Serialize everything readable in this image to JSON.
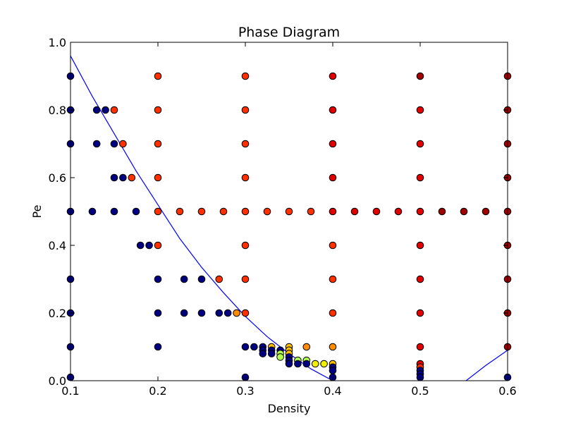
{
  "chart_data": {
    "type": "scatter",
    "title": "Phase Diagram",
    "xlabel": "Density",
    "ylabel": "Pe",
    "xlim": [
      0.1,
      0.6
    ],
    "ylim": [
      0.0,
      1.0
    ],
    "xticks": [
      "0.1",
      "0.2",
      "0.3",
      "0.4",
      "0.5",
      "0.6"
    ],
    "yticks": [
      "0.0",
      "0.2",
      "0.4",
      "0.6",
      "0.8",
      "1.0"
    ],
    "grid": false,
    "colors": {
      "navy": "#000080",
      "orange_red": "#ff3000",
      "red": "#e00000",
      "dark_red": "#a00000",
      "orange": "#ff8c00",
      "amber": "#ffc000",
      "yellow": "#f0f000",
      "light_green": "#b0ff50",
      "curve": "#0000ff"
    },
    "points": [
      {
        "x": 0.1,
        "y": 0.9,
        "c": "navy"
      },
      {
        "x": 0.1,
        "y": 0.8,
        "c": "navy"
      },
      {
        "x": 0.1,
        "y": 0.7,
        "c": "navy"
      },
      {
        "x": 0.1,
        "y": 0.5,
        "c": "navy"
      },
      {
        "x": 0.1,
        "y": 0.3,
        "c": "navy"
      },
      {
        "x": 0.1,
        "y": 0.2,
        "c": "navy"
      },
      {
        "x": 0.1,
        "y": 0.1,
        "c": "navy"
      },
      {
        "x": 0.1,
        "y": 0.01,
        "c": "navy"
      },
      {
        "x": 0.13,
        "y": 0.8,
        "c": "navy"
      },
      {
        "x": 0.14,
        "y": 0.8,
        "c": "navy"
      },
      {
        "x": 0.15,
        "y": 0.8,
        "c": "orange_red"
      },
      {
        "x": 0.13,
        "y": 0.7,
        "c": "navy"
      },
      {
        "x": 0.15,
        "y": 0.7,
        "c": "navy"
      },
      {
        "x": 0.16,
        "y": 0.7,
        "c": "orange_red"
      },
      {
        "x": 0.15,
        "y": 0.6,
        "c": "navy"
      },
      {
        "x": 0.16,
        "y": 0.6,
        "c": "navy"
      },
      {
        "x": 0.17,
        "y": 0.6,
        "c": "orange_red"
      },
      {
        "x": 0.125,
        "y": 0.5,
        "c": "navy"
      },
      {
        "x": 0.15,
        "y": 0.5,
        "c": "navy"
      },
      {
        "x": 0.175,
        "y": 0.5,
        "c": "navy"
      },
      {
        "x": 0.18,
        "y": 0.4,
        "c": "navy"
      },
      {
        "x": 0.19,
        "y": 0.4,
        "c": "navy"
      },
      {
        "x": 0.2,
        "y": 0.9,
        "c": "orange_red"
      },
      {
        "x": 0.2,
        "y": 0.8,
        "c": "orange_red"
      },
      {
        "x": 0.2,
        "y": 0.7,
        "c": "orange_red"
      },
      {
        "x": 0.2,
        "y": 0.6,
        "c": "orange_red"
      },
      {
        "x": 0.2,
        "y": 0.5,
        "c": "orange_red"
      },
      {
        "x": 0.2,
        "y": 0.4,
        "c": "orange_red"
      },
      {
        "x": 0.2,
        "y": 0.3,
        "c": "navy"
      },
      {
        "x": 0.2,
        "y": 0.2,
        "c": "navy"
      },
      {
        "x": 0.2,
        "y": 0.1,
        "c": "navy"
      },
      {
        "x": 0.225,
        "y": 0.5,
        "c": "orange_red"
      },
      {
        "x": 0.25,
        "y": 0.5,
        "c": "orange_red"
      },
      {
        "x": 0.275,
        "y": 0.5,
        "c": "orange_red"
      },
      {
        "x": 0.23,
        "y": 0.3,
        "c": "navy"
      },
      {
        "x": 0.25,
        "y": 0.3,
        "c": "navy"
      },
      {
        "x": 0.27,
        "y": 0.3,
        "c": "orange_red"
      },
      {
        "x": 0.23,
        "y": 0.2,
        "c": "navy"
      },
      {
        "x": 0.25,
        "y": 0.2,
        "c": "navy"
      },
      {
        "x": 0.27,
        "y": 0.2,
        "c": "navy"
      },
      {
        "x": 0.28,
        "y": 0.2,
        "c": "navy"
      },
      {
        "x": 0.29,
        "y": 0.2,
        "c": "orange"
      },
      {
        "x": 0.3,
        "y": 0.9,
        "c": "orange_red"
      },
      {
        "x": 0.3,
        "y": 0.8,
        "c": "orange_red"
      },
      {
        "x": 0.3,
        "y": 0.7,
        "c": "orange_red"
      },
      {
        "x": 0.3,
        "y": 0.6,
        "c": "orange_red"
      },
      {
        "x": 0.3,
        "y": 0.5,
        "c": "orange_red"
      },
      {
        "x": 0.3,
        "y": 0.4,
        "c": "orange_red"
      },
      {
        "x": 0.3,
        "y": 0.3,
        "c": "orange_red"
      },
      {
        "x": 0.3,
        "y": 0.2,
        "c": "orange_red"
      },
      {
        "x": 0.3,
        "y": 0.1,
        "c": "navy"
      },
      {
        "x": 0.3,
        "y": 0.01,
        "c": "navy"
      },
      {
        "x": 0.31,
        "y": 0.1,
        "c": "navy"
      },
      {
        "x": 0.32,
        "y": 0.1,
        "c": "navy"
      },
      {
        "x": 0.32,
        "y": 0.09,
        "c": "navy"
      },
      {
        "x": 0.32,
        "y": 0.08,
        "c": "navy"
      },
      {
        "x": 0.33,
        "y": 0.1,
        "c": "amber"
      },
      {
        "x": 0.33,
        "y": 0.09,
        "c": "navy"
      },
      {
        "x": 0.33,
        "y": 0.08,
        "c": "navy"
      },
      {
        "x": 0.34,
        "y": 0.09,
        "c": "navy"
      },
      {
        "x": 0.34,
        "y": 0.08,
        "c": "light_green"
      },
      {
        "x": 0.34,
        "y": 0.07,
        "c": "light_green"
      },
      {
        "x": 0.35,
        "y": 0.1,
        "c": "amber"
      },
      {
        "x": 0.35,
        "y": 0.09,
        "c": "amber"
      },
      {
        "x": 0.35,
        "y": 0.08,
        "c": "amber"
      },
      {
        "x": 0.35,
        "y": 0.07,
        "c": "navy"
      },
      {
        "x": 0.35,
        "y": 0.06,
        "c": "navy"
      },
      {
        "x": 0.35,
        "y": 0.05,
        "c": "navy"
      },
      {
        "x": 0.36,
        "y": 0.06,
        "c": "light_green"
      },
      {
        "x": 0.36,
        "y": 0.05,
        "c": "navy"
      },
      {
        "x": 0.37,
        "y": 0.1,
        "c": "orange"
      },
      {
        "x": 0.37,
        "y": 0.06,
        "c": "light_green"
      },
      {
        "x": 0.37,
        "y": 0.05,
        "c": "navy"
      },
      {
        "x": 0.38,
        "y": 0.05,
        "c": "yellow"
      },
      {
        "x": 0.39,
        "y": 0.05,
        "c": "yellow"
      },
      {
        "x": 0.325,
        "y": 0.5,
        "c": "orange_red"
      },
      {
        "x": 0.35,
        "y": 0.5,
        "c": "orange_red"
      },
      {
        "x": 0.375,
        "y": 0.5,
        "c": "orange_red"
      },
      {
        "x": 0.4,
        "y": 0.9,
        "c": "red"
      },
      {
        "x": 0.4,
        "y": 0.8,
        "c": "red"
      },
      {
        "x": 0.4,
        "y": 0.7,
        "c": "red"
      },
      {
        "x": 0.4,
        "y": 0.6,
        "c": "red"
      },
      {
        "x": 0.4,
        "y": 0.5,
        "c": "red"
      },
      {
        "x": 0.4,
        "y": 0.4,
        "c": "orange_red"
      },
      {
        "x": 0.4,
        "y": 0.3,
        "c": "orange_red"
      },
      {
        "x": 0.4,
        "y": 0.2,
        "c": "orange_red"
      },
      {
        "x": 0.4,
        "y": 0.1,
        "c": "orange"
      },
      {
        "x": 0.4,
        "y": 0.05,
        "c": "amber"
      },
      {
        "x": 0.4,
        "y": 0.04,
        "c": "navy"
      },
      {
        "x": 0.4,
        "y": 0.03,
        "c": "navy"
      },
      {
        "x": 0.4,
        "y": 0.01,
        "c": "navy"
      },
      {
        "x": 0.425,
        "y": 0.5,
        "c": "red"
      },
      {
        "x": 0.45,
        "y": 0.5,
        "c": "red"
      },
      {
        "x": 0.475,
        "y": 0.5,
        "c": "red"
      },
      {
        "x": 0.5,
        "y": 0.9,
        "c": "dark_red"
      },
      {
        "x": 0.5,
        "y": 0.8,
        "c": "red"
      },
      {
        "x": 0.5,
        "y": 0.7,
        "c": "red"
      },
      {
        "x": 0.5,
        "y": 0.6,
        "c": "red"
      },
      {
        "x": 0.5,
        "y": 0.5,
        "c": "red"
      },
      {
        "x": 0.5,
        "y": 0.4,
        "c": "red"
      },
      {
        "x": 0.5,
        "y": 0.3,
        "c": "red"
      },
      {
        "x": 0.5,
        "y": 0.2,
        "c": "red"
      },
      {
        "x": 0.5,
        "y": 0.1,
        "c": "red"
      },
      {
        "x": 0.5,
        "y": 0.05,
        "c": "red"
      },
      {
        "x": 0.5,
        "y": 0.04,
        "c": "orange_red"
      },
      {
        "x": 0.5,
        "y": 0.03,
        "c": "navy"
      },
      {
        "x": 0.5,
        "y": 0.02,
        "c": "navy"
      },
      {
        "x": 0.5,
        "y": 0.01,
        "c": "navy"
      },
      {
        "x": 0.525,
        "y": 0.5,
        "c": "dark_red"
      },
      {
        "x": 0.55,
        "y": 0.5,
        "c": "dark_red"
      },
      {
        "x": 0.575,
        "y": 0.5,
        "c": "dark_red"
      },
      {
        "x": 0.6,
        "y": 0.9,
        "c": "dark_red"
      },
      {
        "x": 0.6,
        "y": 0.8,
        "c": "dark_red"
      },
      {
        "x": 0.6,
        "y": 0.7,
        "c": "dark_red"
      },
      {
        "x": 0.6,
        "y": 0.6,
        "c": "dark_red"
      },
      {
        "x": 0.6,
        "y": 0.5,
        "c": "dark_red"
      },
      {
        "x": 0.6,
        "y": 0.4,
        "c": "dark_red"
      },
      {
        "x": 0.6,
        "y": 0.3,
        "c": "dark_red"
      },
      {
        "x": 0.6,
        "y": 0.2,
        "c": "dark_red"
      },
      {
        "x": 0.6,
        "y": 0.1,
        "c": "dark_red"
      },
      {
        "x": 0.6,
        "y": 0.01,
        "c": "navy"
      }
    ],
    "curve": {
      "x": [
        0.1,
        0.125,
        0.15,
        0.175,
        0.2,
        0.225,
        0.25,
        0.275,
        0.3,
        0.325,
        0.35,
        0.375,
        0.4,
        0.425,
        0.45,
        0.475,
        0.5,
        0.525,
        0.55,
        0.575,
        0.6
      ],
      "y": [
        0.96,
        0.84,
        0.73,
        0.62,
        0.52,
        0.42,
        0.335,
        0.26,
        0.19,
        0.13,
        0.08,
        0.035,
        0.0,
        -0.03,
        -0.055,
        -0.07,
        -0.07,
        -0.05,
        -0.005,
        0.045,
        0.09
      ]
    }
  }
}
